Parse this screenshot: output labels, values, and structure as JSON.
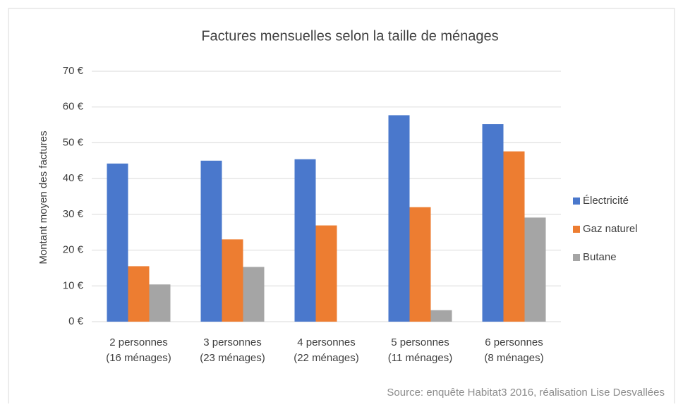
{
  "chart_data": {
    "type": "bar",
    "title": "Factures mensuelles selon la taille de ménages",
    "y_label": "Montant moyen des factures",
    "source": "Source: enquête Habitat3 2016, réalisation Lise Desvallées",
    "categories": [
      [
        "2 personnes",
        "(16 ménages)"
      ],
      [
        "3 personnes",
        "(23 ménages)"
      ],
      [
        "4 personnes",
        "(22 ménages)"
      ],
      [
        "5 personnes",
        "(11 ménages)"
      ],
      [
        "6 personnes",
        "(8 ménages)"
      ]
    ],
    "series": [
      {
        "name": "Électricité",
        "color": "#4a78cc",
        "values": [
          44.2,
          45,
          45.4,
          57.7,
          55.2
        ]
      },
      {
        "name": "Gaz naturel",
        "color": "#ed7d31",
        "values": [
          15.5,
          23,
          26.9,
          32,
          47.6
        ]
      },
      {
        "name": "Butane",
        "color": "#a5a5a5",
        "values": [
          10.4,
          15.3,
          null,
          3.2,
          29.1
        ]
      }
    ],
    "ylim": [
      0,
      70
    ],
    "yticks": [
      {
        "value": 0,
        "label": "0 €"
      },
      {
        "value": 10,
        "label": "10 €"
      },
      {
        "value": 20,
        "label": "20 €"
      },
      {
        "value": 30,
        "label": "30 €"
      },
      {
        "value": 40,
        "label": "40 €"
      },
      {
        "value": 50,
        "label": "50 €"
      },
      {
        "value": 60,
        "label": "60 €"
      },
      {
        "value": 70,
        "label": "70 €"
      }
    ],
    "grid": true,
    "legend": "right"
  }
}
